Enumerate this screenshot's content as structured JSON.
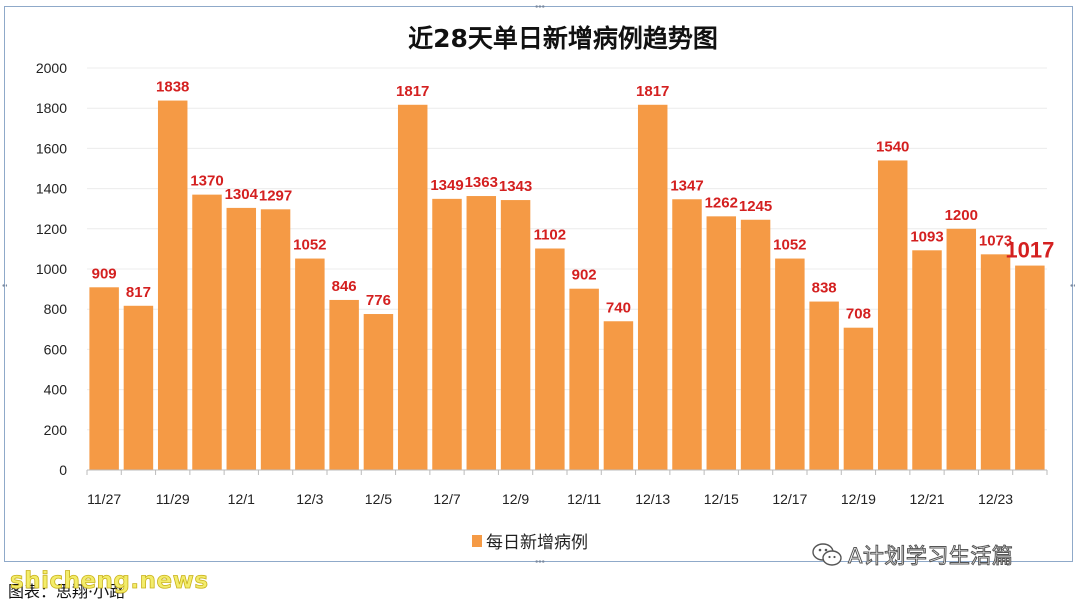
{
  "chart_data": {
    "type": "bar",
    "title": "近28天单日新增病例趋势图",
    "categories": [
      "11/27",
      "11/28",
      "11/29",
      "11/30",
      "12/1",
      "12/2",
      "12/3",
      "12/4",
      "12/5",
      "12/6",
      "12/7",
      "12/8",
      "12/9",
      "12/10",
      "12/11",
      "12/12",
      "12/13",
      "12/14",
      "12/15",
      "12/16",
      "12/17",
      "12/18",
      "12/19",
      "12/20",
      "12/21",
      "12/22",
      "12/23",
      "12/24"
    ],
    "x_tick_labels": [
      "11/27",
      "11/29",
      "12/1",
      "12/3",
      "12/5",
      "12/7",
      "12/9",
      "12/11",
      "12/13",
      "12/15",
      "12/17",
      "12/19",
      "12/21",
      "12/23"
    ],
    "series": [
      {
        "name": "每日新增病例",
        "values": [
          909,
          817,
          1838,
          1370,
          1304,
          1297,
          1052,
          846,
          776,
          1817,
          1349,
          1363,
          1343,
          1102,
          902,
          740,
          1817,
          1347,
          1262,
          1245,
          1052,
          838,
          708,
          1540,
          1093,
          1200,
          1073,
          1017
        ]
      }
    ],
    "y_ticks": [
      0,
      200,
      400,
      600,
      800,
      1000,
      1200,
      1400,
      1600,
      1800,
      2000
    ],
    "ylim": [
      0,
      2000
    ],
    "xlabel": "",
    "ylabel": "",
    "grid": true,
    "legend_position": "bottom",
    "bar_color": "#f59a45",
    "label_color": "#d42020"
  },
  "watermark": {
    "wechat": "A计划学习生活篇",
    "site": "shicheng.news"
  },
  "caption": "图表：思翔·小路"
}
